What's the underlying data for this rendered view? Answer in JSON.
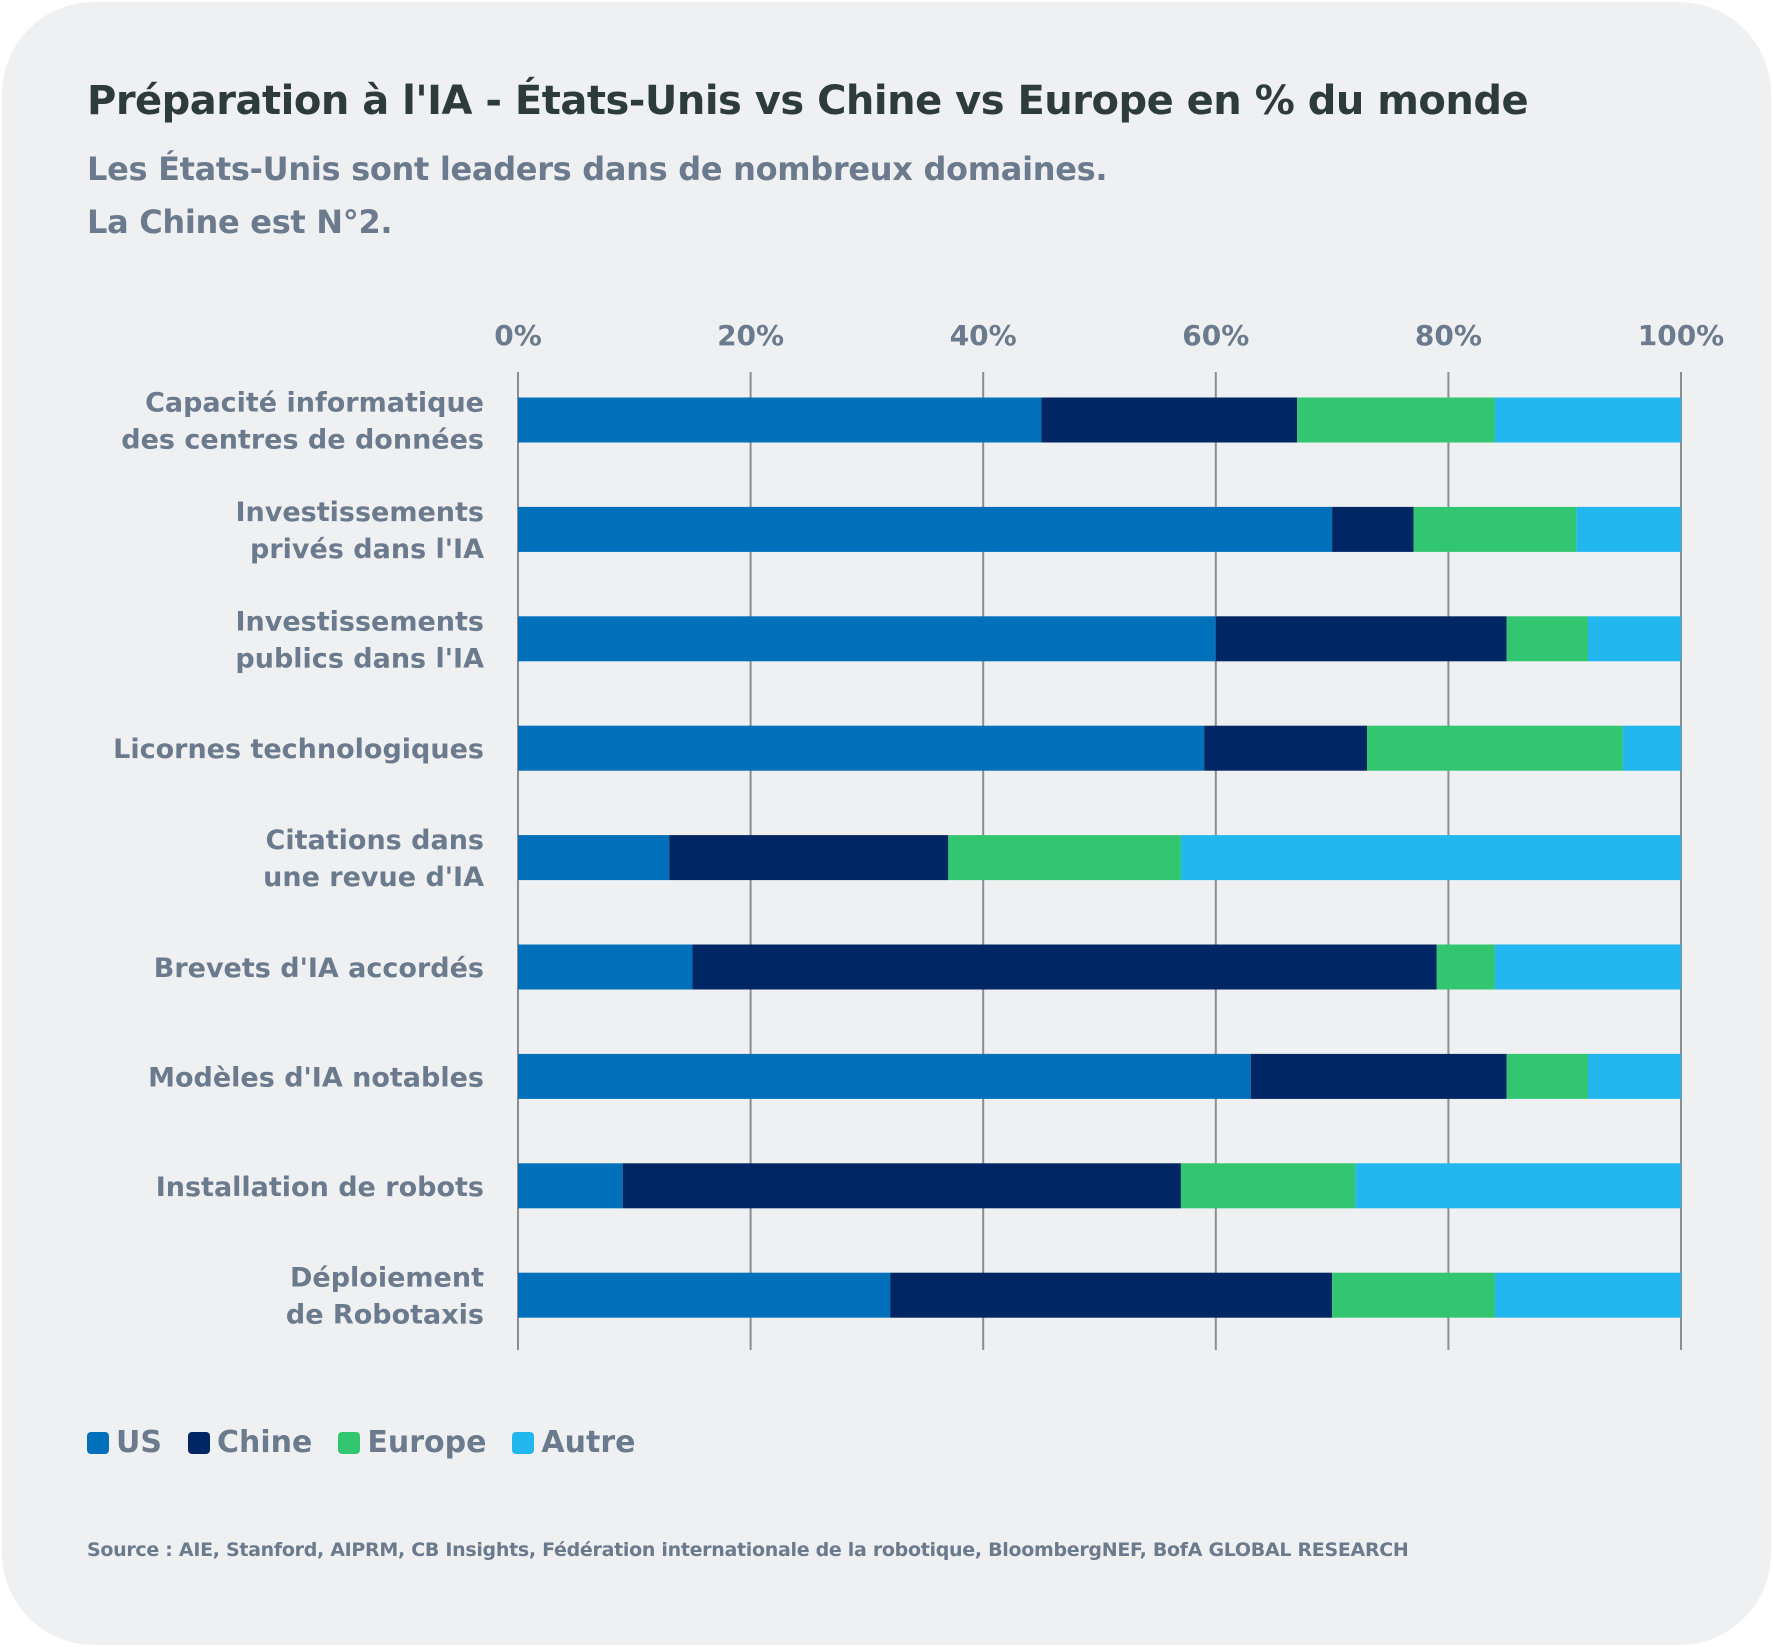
{
  "chart_data": {
    "type": "bar",
    "orientation": "horizontal",
    "stacked": true,
    "title": "Préparation à l'IA - États-Unis vs Chine vs Europe en % du monde",
    "subtitle": [
      "Les États-Unis sont leaders dans de nombreux domaines.",
      "La Chine est N°2."
    ],
    "xlabel": "",
    "ylabel": "",
    "xlim": [
      0,
      100
    ],
    "x_ticks": [
      "0%",
      "20%",
      "40%",
      "60%",
      "80%",
      "100%"
    ],
    "x_tick_values": [
      0,
      20,
      40,
      60,
      80,
      100
    ],
    "x_axis_position": "top",
    "grid": true,
    "legend_position": "bottom-left",
    "categories": [
      [
        "Capacité informatique",
        "des centres de données"
      ],
      [
        "Investissements",
        "privés dans l'IA"
      ],
      [
        "Investissements",
        "publics dans l'IA"
      ],
      [
        "Licornes technologiques"
      ],
      [
        "Citations dans",
        "une revue d'IA"
      ],
      [
        "Brevets d'IA accordés"
      ],
      [
        "Modèles d'IA notables"
      ],
      [
        "Installation de robots"
      ],
      [
        "Déploiement",
        "de Robotaxis"
      ]
    ],
    "series": [
      {
        "name": "US",
        "color": "#0070bb",
        "values": [
          45,
          70,
          60,
          59,
          13,
          15,
          63,
          9,
          32
        ]
      },
      {
        "name": "Chine",
        "color": "#002664",
        "values": [
          22,
          7,
          25,
          14,
          24,
          64,
          22,
          48,
          38
        ]
      },
      {
        "name": "Europe",
        "color": "#33c671",
        "values": [
          17,
          14,
          7,
          22,
          20,
          5,
          7,
          15,
          14
        ]
      },
      {
        "name": "Autre",
        "color": "#22b8ef",
        "values": [
          16,
          9,
          8,
          5,
          43,
          16,
          8,
          28,
          16
        ]
      }
    ],
    "source": "Source : AIE, Stanford, AIPRM, CB Insights, Fédération internationale de la robotique, BloombergNEF, BofA GLOBAL RESEARCH"
  }
}
